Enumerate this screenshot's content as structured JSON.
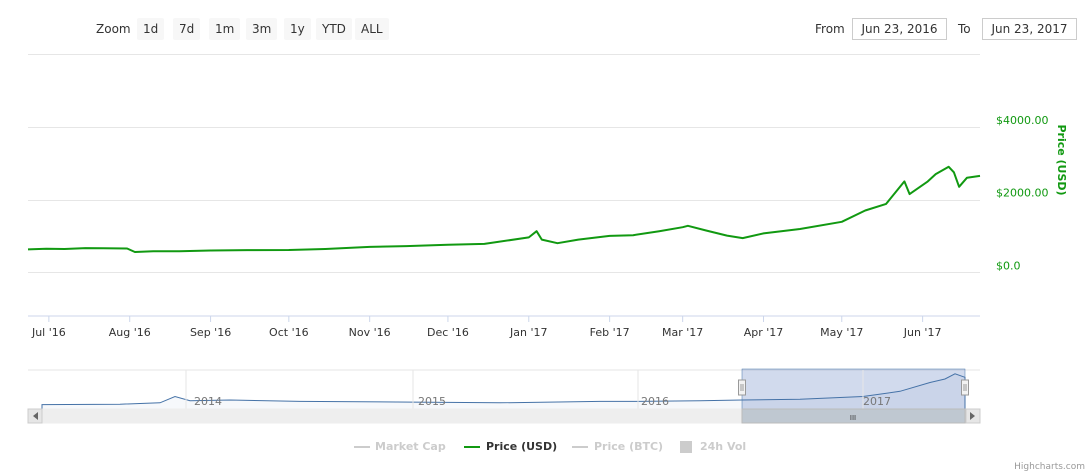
{
  "rangeSelector": {
    "zoom_label": "Zoom",
    "buttons": [
      "1d",
      "7d",
      "1m",
      "3m",
      "1y",
      "YTD",
      "ALL"
    ],
    "from_label": "From",
    "from_value": "Jun 23, 2016",
    "to_label": "To",
    "to_value": "Jun 23, 2017"
  },
  "legend": {
    "items": [
      {
        "label": "Market Cap",
        "active": false
      },
      {
        "label": "Price (USD)",
        "active": true
      },
      {
        "label": "Price (BTC)",
        "active": false
      },
      {
        "label": "24h Vol",
        "active": false
      }
    ]
  },
  "colors": {
    "price": "#119911",
    "navigator": "#4572a7",
    "inactive": "#cccccc"
  },
  "credit": "Highcharts.com",
  "chart_data": {
    "type": "line",
    "ylabel": "Price (USD)",
    "ylim": [
      -1200,
      6000
    ],
    "yticks": [
      0,
      2000,
      4000
    ],
    "ytick_labels": [
      "$0.0",
      "$2000.00",
      "$4000.00"
    ],
    "xtick_labels": [
      "Jul '16",
      "Aug '16",
      "Sep '16",
      "Oct '16",
      "Nov '16",
      "Dec '16",
      "Jan '17",
      "Feb '17",
      "Mar '17",
      "Apr '17",
      "May '17",
      "Jun '17"
    ],
    "series": [
      {
        "name": "Price (USD)",
        "x": [
          "2016-06-23",
          "2016-06-30",
          "2016-07-07",
          "2016-07-15",
          "2016-07-22",
          "2016-07-31",
          "2016-08-03",
          "2016-08-10",
          "2016-08-20",
          "2016-09-01",
          "2016-09-15",
          "2016-10-01",
          "2016-10-15",
          "2016-11-01",
          "2016-11-15",
          "2016-12-01",
          "2016-12-15",
          "2017-01-01",
          "2017-01-04",
          "2017-01-06",
          "2017-01-12",
          "2017-01-20",
          "2017-02-01",
          "2017-02-10",
          "2017-02-20",
          "2017-03-01",
          "2017-03-03",
          "2017-03-10",
          "2017-03-18",
          "2017-03-24",
          "2017-04-01",
          "2017-04-15",
          "2017-05-01",
          "2017-05-10",
          "2017-05-18",
          "2017-05-25",
          "2017-05-27",
          "2017-06-03",
          "2017-06-06",
          "2017-06-11",
          "2017-06-13",
          "2017-06-15",
          "2017-06-18",
          "2017-06-23"
        ],
        "values": [
          630,
          650,
          640,
          665,
          660,
          655,
          560,
          580,
          580,
          600,
          610,
          615,
          640,
          700,
          720,
          760,
          780,
          960,
          1130,
          900,
          800,
          900,
          1000,
          1020,
          1130,
          1240,
          1280,
          1150,
          1010,
          940,
          1070,
          1190,
          1390,
          1700,
          1880,
          2500,
          2150,
          2500,
          2700,
          2900,
          2750,
          2350,
          2600,
          2650
        ]
      }
    ]
  },
  "navigator": {
    "year_labels": [
      "2014",
      "2015",
      "2016",
      "2017"
    ],
    "scroll_grip": "III"
  }
}
